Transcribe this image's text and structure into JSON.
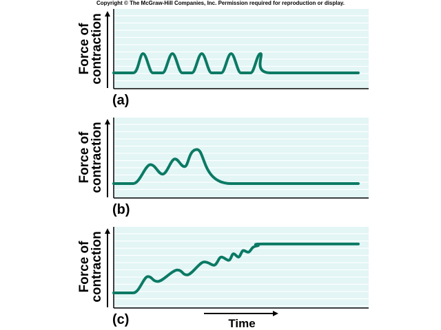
{
  "copyright": "Copyright © The McGraw-Hill Companies, Inc. Permission required for reproduction or display.",
  "colors": {
    "line": "#0b7a64",
    "plot_bg": "#e3f5f5",
    "grid": "#ffffff",
    "axis": "#000000"
  },
  "chart_data": [
    {
      "type": "line",
      "panel_label": "(a)",
      "ylabel_line1": "Force of",
      "ylabel_line2": "contraction",
      "xlabel": "",
      "description_values": "Five separate twitches returning fully to baseline",
      "x": [
        0,
        8,
        12,
        16,
        20,
        24,
        28,
        32,
        36,
        40,
        44,
        48,
        52,
        56,
        60,
        64,
        100
      ],
      "y": [
        0,
        0,
        1,
        0,
        0,
        1,
        0,
        0,
        1,
        0,
        0,
        1,
        0,
        0,
        1,
        0,
        0
      ]
    },
    {
      "type": "line",
      "panel_label": "(b)",
      "ylabel_line1": "Force of",
      "ylabel_line2": "contraction",
      "xlabel": "",
      "x": [
        0,
        8,
        15,
        20,
        25,
        29,
        34,
        48,
        100
      ],
      "y": [
        0,
        0,
        1.0,
        0.5,
        1.3,
        0.9,
        1.8,
        0,
        0
      ]
    },
    {
      "type": "line",
      "panel_label": "(c)",
      "ylabel_line1": "Force of",
      "ylabel_line2": "contraction",
      "xlabel": "Time",
      "x": [
        0,
        8,
        14,
        18,
        26,
        30,
        37,
        41,
        44,
        47,
        49,
        51,
        53,
        55,
        57,
        59,
        62,
        100
      ],
      "y": [
        0,
        0,
        1.0,
        0.7,
        1.4,
        1.1,
        1.9,
        1.7,
        2.2,
        2.0,
        2.4,
        2.2,
        2.6,
        2.5,
        2.8,
        2.9,
        3.0,
        3.0
      ]
    }
  ]
}
